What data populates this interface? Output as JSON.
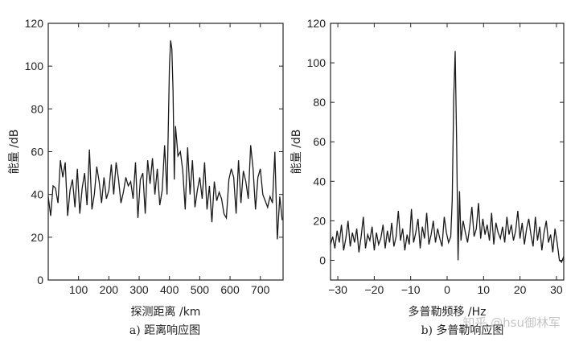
{
  "watermark": "知乎 @hsu御林军",
  "chart_data": [
    {
      "type": "line",
      "caption": "a) 距离响应图",
      "xlabel": "探测距离 /km",
      "ylabel": "能量 /dB",
      "xlim": [
        0,
        775
      ],
      "ylim": [
        0,
        120
      ],
      "xticks": [
        100,
        200,
        300,
        400,
        500,
        600,
        700
      ],
      "yticks": [
        0,
        20,
        40,
        60,
        80,
        100,
        120
      ],
      "grid": false,
      "x": [
        0,
        8,
        16,
        24,
        32,
        40,
        48,
        56,
        64,
        72,
        80,
        88,
        96,
        104,
        112,
        120,
        128,
        136,
        144,
        152,
        160,
        168,
        176,
        184,
        192,
        200,
        208,
        216,
        224,
        232,
        240,
        248,
        256,
        264,
        272,
        280,
        288,
        296,
        304,
        312,
        320,
        328,
        336,
        344,
        352,
        360,
        368,
        376,
        384,
        392,
        400,
        404,
        408,
        412,
        416,
        420,
        424,
        428,
        436,
        444,
        452,
        460,
        468,
        476,
        484,
        492,
        500,
        508,
        516,
        524,
        532,
        540,
        548,
        556,
        564,
        572,
        580,
        588,
        596,
        604,
        612,
        620,
        628,
        636,
        644,
        652,
        660,
        668,
        676,
        684,
        692,
        700,
        708,
        716,
        724,
        732,
        740,
        748,
        756,
        764,
        772
      ],
      "y": [
        39,
        30,
        44,
        43,
        36,
        56,
        48,
        55,
        30,
        42,
        47,
        34,
        52,
        31,
        43,
        50,
        35,
        61,
        33,
        40,
        53,
        46,
        36,
        48,
        38,
        42,
        54,
        40,
        55,
        47,
        36,
        41,
        48,
        44,
        46,
        38,
        55,
        29,
        47,
        50,
        31,
        56,
        45,
        57,
        40,
        52,
        35,
        42,
        63,
        40,
        100,
        112,
        108,
        88,
        47,
        72,
        65,
        58,
        60,
        51,
        33,
        62,
        40,
        56,
        34,
        42,
        48,
        38,
        55,
        33,
        44,
        27,
        46,
        37,
        41,
        38,
        31,
        29,
        47,
        52,
        48,
        31,
        56,
        36,
        51,
        46,
        38,
        63,
        52,
        33,
        48,
        52,
        40,
        37,
        34,
        39,
        36,
        60,
        19,
        39,
        28
      ]
    },
    {
      "type": "line",
      "caption": "b) 多普勒响应图",
      "xlabel": "多普勒频移 /Hz",
      "ylabel": "能量 /dB",
      "xlim": [
        -32,
        32
      ],
      "ylim": [
        -10,
        120
      ],
      "xticks": [
        -30,
        -20,
        -10,
        0,
        10,
        20,
        30
      ],
      "yticks": [
        0,
        20,
        40,
        60,
        80,
        100,
        120
      ],
      "grid": false,
      "x": [
        -32,
        -31.4,
        -30.8,
        -30.2,
        -29.6,
        -29,
        -28.4,
        -27.8,
        -27.2,
        -26.6,
        -26,
        -25.4,
        -24.8,
        -24.2,
        -23.6,
        -23,
        -22.4,
        -21.8,
        -21.2,
        -20.6,
        -20,
        -19.4,
        -18.8,
        -18.2,
        -17.6,
        -17,
        -16.4,
        -15.8,
        -15.2,
        -14.6,
        -14,
        -13.4,
        -12.8,
        -12.2,
        -11.6,
        -11,
        -10.4,
        -9.8,
        -9.2,
        -8.6,
        -8,
        -7.4,
        -6.8,
        -6.2,
        -5.6,
        -5,
        -4.4,
        -3.8,
        -3.2,
        -2.6,
        -2,
        -1.4,
        -0.8,
        -0.2,
        0.4,
        1,
        1.4,
        1.8,
        2.2,
        2.6,
        3,
        3.4,
        3.8,
        4.4,
        5,
        5.6,
        6.2,
        6.8,
        7.4,
        8,
        8.6,
        9.2,
        9.8,
        10.4,
        11,
        11.6,
        12.2,
        12.8,
        13.4,
        14,
        14.6,
        15.2,
        15.8,
        16.4,
        17,
        17.6,
        18.2,
        18.8,
        19.4,
        20,
        20.6,
        21.2,
        21.8,
        22.4,
        23,
        23.6,
        24.2,
        24.8,
        25.4,
        26,
        26.6,
        27.2,
        27.8,
        28.4,
        29,
        29.6,
        30.2,
        30.8,
        31.4,
        32
      ],
      "y": [
        8,
        12,
        6,
        15,
        9,
        18,
        5,
        11,
        20,
        7,
        14,
        9,
        16,
        4,
        12,
        22,
        6,
        13,
        10,
        17,
        5,
        14,
        8,
        11,
        18,
        6,
        15,
        9,
        19,
        7,
        12,
        25,
        10,
        16,
        5,
        13,
        8,
        26,
        9,
        14,
        21,
        6,
        17,
        11,
        24,
        8,
        13,
        20,
        9,
        16,
        11,
        7,
        22,
        14,
        9,
        12,
        30,
        82,
        106,
        60,
        0,
        35,
        10,
        20,
        14,
        9,
        17,
        27,
        12,
        16,
        29,
        11,
        21,
        13,
        18,
        10,
        24,
        8,
        19,
        14,
        11,
        17,
        9,
        22,
        13,
        18,
        10,
        15,
        25,
        11,
        19,
        8,
        16,
        21,
        13,
        7,
        22,
        10,
        17,
        5,
        14,
        20,
        9,
        13,
        4,
        16,
        9,
        0,
        -1,
        2
      ]
    }
  ]
}
